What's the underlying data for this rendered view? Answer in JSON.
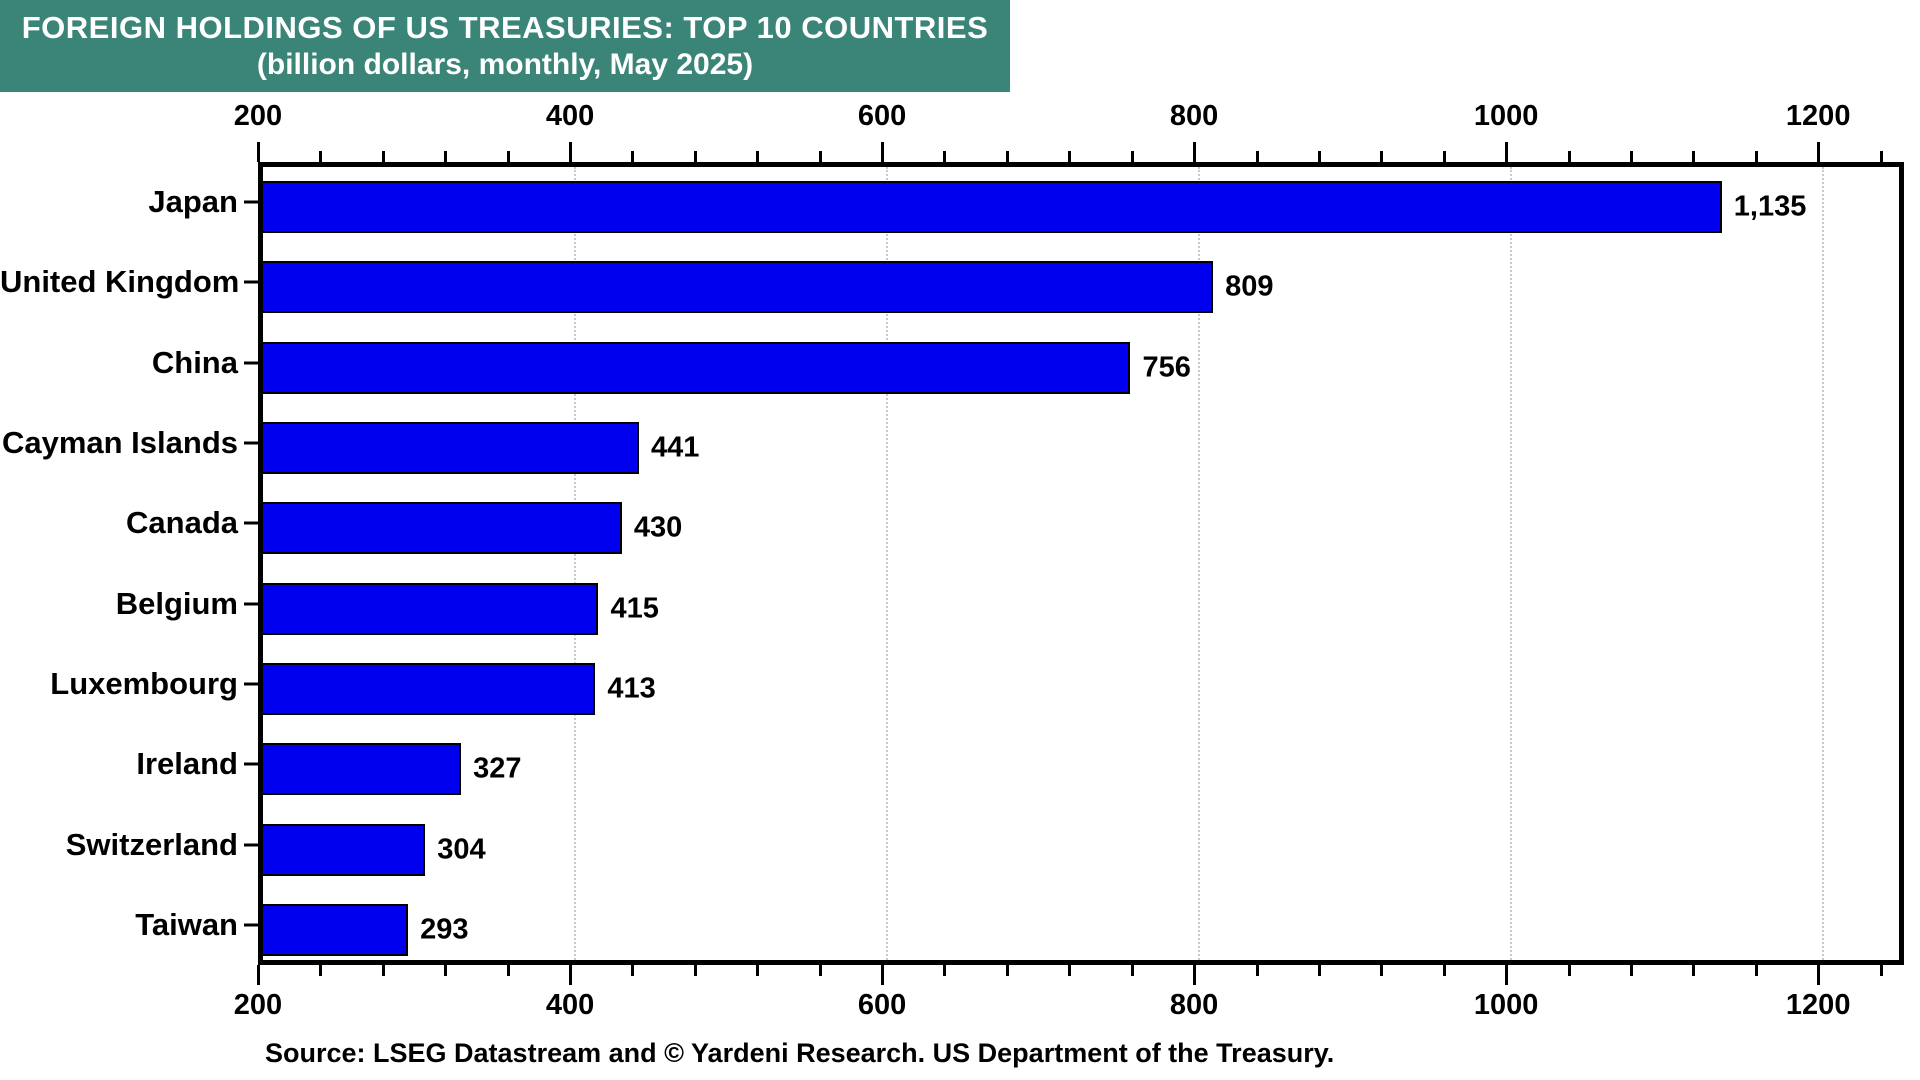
{
  "title": {
    "line1": "FOREIGN HOLDINGS OF US TREASURIES: TOP 10 COUNTRIES",
    "line2": "(billion dollars, monthly, May 2025)"
  },
  "source": "Source: LSEG Datastream and © Yardeni Research. US Department of the Treasury.",
  "colors": {
    "banner_background": "#3A8478",
    "banner_text": "#FFFFFF",
    "bar_fill": "#0000EE",
    "bar_border": "#000000",
    "axis": "#000000",
    "gridline": "#C9C9C9"
  },
  "chart_data": {
    "type": "bar",
    "orientation": "horizontal",
    "title": "FOREIGN HOLDINGS OF US TREASURIES: TOP 10 COUNTRIES",
    "subtitle": "(billion dollars, monthly, May 2025)",
    "categories": [
      "Japan",
      "United Kingdom",
      "China",
      "Cayman Islands",
      "Canada",
      "Belgium",
      "Luxembourg",
      "Ireland",
      "Switzerland",
      "Taiwan"
    ],
    "values": [
      1135,
      809,
      756,
      441,
      430,
      415,
      413,
      327,
      304,
      293
    ],
    "value_labels": [
      "1,135",
      "809",
      "756",
      "441",
      "430",
      "415",
      "413",
      "327",
      "304",
      "293"
    ],
    "xlabel": "",
    "ylabel": "",
    "xlim": [
      200,
      1255
    ],
    "x_major_ticks": [
      200,
      400,
      600,
      800,
      1000,
      1200
    ],
    "x_minor_tick_step": 40,
    "grid": "vertical dotted gridlines at major ticks",
    "axis_label_positions": "ticks and labels mirrored on top and bottom",
    "legend": "none"
  }
}
